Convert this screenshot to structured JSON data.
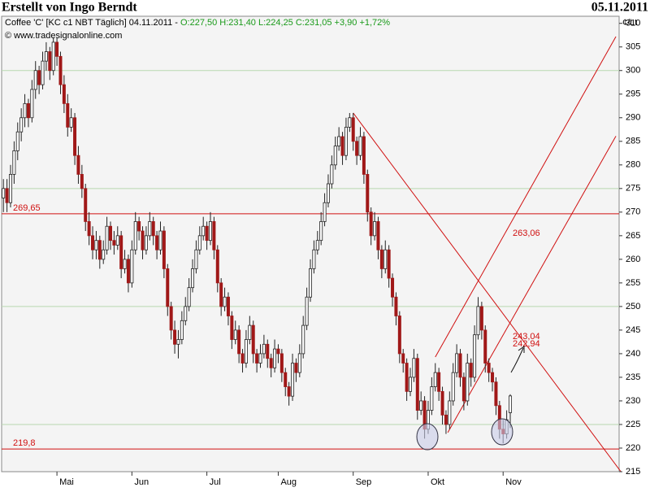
{
  "header": {
    "title": "Erstellt von Ingo Berndt",
    "date": "05.11.2011"
  },
  "chart_data": {
    "type": "candlestick",
    "legend_prefix": "Coffee 'C' [KC c1 NBT  Täglich] 04.11.2011 - ",
    "legend_values": "O:227,50 H:231,40 L:224,25 C:231,05 +3,90 +1,72%",
    "source": "© www.tradesignalonline.com",
    "y_unit": "¢/Lt",
    "ylim": [
      215,
      311.5
    ],
    "xlim": [
      -0.5,
      172.5
    ],
    "yticks": [
      215,
      220,
      225,
      230,
      235,
      240,
      245,
      250,
      255,
      260,
      265,
      270,
      275,
      280,
      285,
      290,
      295,
      300,
      305,
      310
    ],
    "gridlines": [
      225,
      250,
      275,
      300
    ],
    "xticks": [
      {
        "value": 15,
        "label": "Mai"
      },
      {
        "value": 36,
        "label": "Jun"
      },
      {
        "value": 57,
        "label": "Jul"
      },
      {
        "value": 77,
        "label": "Aug"
      },
      {
        "value": 98,
        "label": "Sep"
      },
      {
        "value": 119,
        "label": "Okt"
      },
      {
        "value": 140,
        "label": "Nov"
      }
    ],
    "levels": [
      {
        "value": 269.65,
        "label": "269,65"
      },
      {
        "value": 219.8,
        "label": "219,8"
      }
    ],
    "trendlines": [
      [
        [
          98,
          291
        ],
        [
          173,
          215
        ]
      ],
      [
        [
          124.5,
          223.3
        ],
        [
          171.6,
          286.1
        ]
      ],
      [
        [
          121,
          239.3
        ],
        [
          171.6,
          307.2
        ]
      ]
    ],
    "line_labels": [
      {
        "value": 263.06,
        "label": "263,06"
      },
      {
        "value": 243.04,
        "label": "243,04"
      },
      {
        "value": 242.94,
        "label": "242,94"
      }
    ],
    "ohlc": [
      [
        273,
        277,
        270,
        275
      ],
      [
        275,
        277,
        270,
        272
      ],
      [
        272,
        280,
        271,
        278
      ],
      [
        278,
        285,
        276,
        283
      ],
      [
        283,
        289,
        281,
        287
      ],
      [
        287,
        292,
        285,
        290
      ],
      [
        290,
        295,
        288,
        293
      ],
      [
        293,
        294,
        288,
        290
      ],
      [
        290,
        298,
        289,
        296
      ],
      [
        296,
        302,
        294,
        300
      ],
      [
        300,
        301,
        295,
        297
      ],
      [
        297,
        304,
        296,
        302
      ],
      [
        302,
        306,
        300,
        304
      ],
      [
        304,
        305,
        298,
        300
      ],
      [
        300,
        307,
        299,
        306
      ],
      [
        306,
        307,
        301,
        303
      ],
      [
        303,
        304,
        295,
        297
      ],
      [
        297,
        299,
        291,
        293
      ],
      [
        293,
        295,
        286,
        288
      ],
      [
        288,
        292,
        287,
        290
      ],
      [
        290,
        291,
        280,
        282
      ],
      [
        282,
        284,
        276,
        278
      ],
      [
        278,
        280,
        273,
        275
      ],
      [
        275,
        276,
        266,
        268
      ],
      [
        268,
        270,
        263,
        265
      ],
      [
        265,
        267,
        260,
        262
      ],
      [
        262,
        266,
        260,
        264
      ],
      [
        264,
        265,
        258,
        260
      ],
      [
        260,
        264,
        259,
        262
      ],
      [
        262,
        269,
        261,
        267
      ],
      [
        267,
        268,
        262,
        264
      ],
      [
        264,
        266,
        261,
        263
      ],
      [
        263,
        267,
        262,
        265
      ],
      [
        265,
        266,
        256,
        258
      ],
      [
        258,
        262,
        257,
        260
      ],
      [
        260,
        261,
        253,
        255
      ],
      [
        255,
        264,
        254,
        262
      ],
      [
        262,
        270,
        261,
        268
      ],
      [
        268,
        269,
        264,
        266
      ],
      [
        266,
        267,
        260,
        262
      ],
      [
        262,
        267,
        261,
        265
      ],
      [
        265,
        270,
        264,
        268
      ],
      [
        268,
        269,
        263,
        265
      ],
      [
        265,
        266,
        260,
        262
      ],
      [
        262,
        268,
        261,
        266
      ],
      [
        266,
        267,
        256,
        258
      ],
      [
        258,
        259,
        248,
        250
      ],
      [
        250,
        251,
        243,
        245
      ],
      [
        245,
        247,
        240,
        242
      ],
      [
        242,
        245,
        239,
        243
      ],
      [
        243,
        249,
        242,
        247
      ],
      [
        247,
        252,
        246,
        250
      ],
      [
        250,
        256,
        249,
        254
      ],
      [
        254,
        260,
        253,
        258
      ],
      [
        258,
        264,
        257,
        262
      ],
      [
        262,
        267,
        261,
        265
      ],
      [
        265,
        269,
        264,
        267
      ],
      [
        267,
        268,
        262,
        264
      ],
      [
        264,
        270,
        263,
        268
      ],
      [
        268,
        269,
        260,
        262
      ],
      [
        262,
        263,
        253,
        255
      ],
      [
        255,
        256,
        248,
        250
      ],
      [
        250,
        254,
        249,
        252
      ],
      [
        252,
        253,
        246,
        248
      ],
      [
        248,
        249,
        241,
        243
      ],
      [
        243,
        247,
        242,
        245
      ],
      [
        245,
        246,
        238,
        240
      ],
      [
        240,
        241,
        236,
        238
      ],
      [
        238,
        245,
        237,
        243
      ],
      [
        243,
        248,
        242,
        246
      ],
      [
        246,
        247,
        238,
        240
      ],
      [
        240,
        241,
        236,
        238
      ],
      [
        238,
        242,
        237,
        240
      ],
      [
        240,
        244,
        239,
        242
      ],
      [
        242,
        243,
        237,
        239
      ],
      [
        239,
        240,
        235,
        237
      ],
      [
        237,
        243,
        236,
        241
      ],
      [
        241,
        242,
        238,
        240
      ],
      [
        240,
        241,
        234,
        236
      ],
      [
        236,
        237,
        231,
        233
      ],
      [
        233,
        234,
        229,
        231
      ],
      [
        231,
        240,
        230,
        238
      ],
      [
        238,
        239,
        234,
        236
      ],
      [
        236,
        242,
        235,
        240
      ],
      [
        240,
        248,
        239,
        246
      ],
      [
        246,
        254,
        245,
        252
      ],
      [
        252,
        260,
        251,
        258
      ],
      [
        258,
        264,
        257,
        262
      ],
      [
        262,
        266,
        261,
        264
      ],
      [
        264,
        270,
        263,
        268
      ],
      [
        268,
        274,
        267,
        272
      ],
      [
        272,
        278,
        271,
        276
      ],
      [
        276,
        282,
        275,
        280
      ],
      [
        280,
        286,
        279,
        284
      ],
      [
        284,
        288,
        283,
        286
      ],
      [
        286,
        287,
        280,
        282
      ],
      [
        282,
        290,
        281,
        288
      ],
      [
        288,
        291,
        287,
        290
      ],
      [
        290,
        291,
        283,
        285
      ],
      [
        285,
        286,
        280,
        282
      ],
      [
        282,
        288,
        281,
        286
      ],
      [
        286,
        287,
        276,
        278
      ],
      [
        278,
        279,
        268,
        270
      ],
      [
        270,
        271,
        263,
        265
      ],
      [
        265,
        270,
        264,
        268
      ],
      [
        268,
        269,
        260,
        262
      ],
      [
        262,
        263,
        256,
        258
      ],
      [
        258,
        264,
        257,
        262
      ],
      [
        262,
        263,
        254,
        256
      ],
      [
        256,
        257,
        250,
        252
      ],
      [
        252,
        253,
        246,
        248
      ],
      [
        248,
        249,
        238,
        240
      ],
      [
        240,
        241,
        236,
        238
      ],
      [
        238,
        239,
        230,
        232
      ],
      [
        232,
        237,
        231,
        235
      ],
      [
        235,
        241,
        234,
        239
      ],
      [
        239,
        240,
        226,
        228
      ],
      [
        228,
        232,
        227,
        230
      ],
      [
        230,
        231,
        222,
        224
      ],
      [
        224,
        230,
        223,
        228
      ],
      [
        228,
        235,
        227,
        233
      ],
      [
        233,
        238,
        232,
        236
      ],
      [
        236,
        237,
        230,
        232
      ],
      [
        232,
        233,
        225,
        227
      ],
      [
        227,
        228,
        223,
        225
      ],
      [
        225,
        232,
        224,
        230
      ],
      [
        230,
        238,
        229,
        236
      ],
      [
        236,
        242,
        235,
        240
      ],
      [
        240,
        241,
        233,
        235
      ],
      [
        235,
        236,
        228,
        230
      ],
      [
        230,
        240,
        229,
        238
      ],
      [
        238,
        239,
        233,
        235
      ],
      [
        235,
        246,
        234,
        244
      ],
      [
        244,
        252,
        243,
        250
      ],
      [
        250,
        251,
        243,
        245
      ],
      [
        245,
        246,
        236,
        238
      ],
      [
        238,
        239,
        234,
        236
      ],
      [
        236,
        237,
        232,
        234
      ],
      [
        234,
        235,
        227,
        229
      ],
      [
        229,
        230,
        222,
        224
      ],
      [
        224,
        226,
        221,
        223
      ],
      [
        223,
        228,
        222,
        226
      ],
      [
        227.5,
        231.4,
        224.25,
        231.05
      ]
    ],
    "up_color": "#ffffff",
    "down_color": "#a01818",
    "level_color": "#d01010",
    "grid_color": "#b8d8b0"
  }
}
